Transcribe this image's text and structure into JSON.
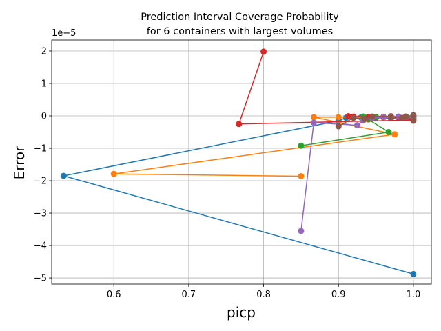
{
  "chart_data": {
    "type": "line",
    "title_line1": "Prediction Interval Coverage Probability",
    "title_line2": "for 6 containers with largest volumes",
    "xlabel": "picp",
    "ylabel": "Error",
    "y_offset_text": "1e−5",
    "xlim": [
      0.517,
      1.024
    ],
    "ylim": [
      -5.19,
      2.34
    ],
    "xticks": [
      0.6,
      0.7,
      0.8,
      0.9,
      1.0
    ],
    "xtick_labels": [
      "0.6",
      "0.7",
      "0.8",
      "0.9",
      "1.0"
    ],
    "yticks": [
      -5,
      -4,
      -3,
      -2,
      -1,
      0,
      1,
      2
    ],
    "ytick_labels": [
      "−5",
      "−4",
      "−3",
      "−2",
      "−1",
      "0",
      "1",
      "2"
    ],
    "grid": true,
    "markers": true,
    "series": [
      {
        "color": "#1f77b4",
        "points": [
          [
            1.0,
            -4.88
          ],
          [
            0.533,
            -1.85
          ],
          [
            0.9,
            -0.15
          ],
          [
            0.91,
            -0.06
          ],
          [
            0.93,
            -0.05
          ],
          [
            0.95,
            -0.06
          ],
          [
            0.97,
            -0.08
          ],
          [
            1.0,
            -0.07
          ]
        ]
      },
      {
        "color": "#ff7f0e",
        "points": [
          [
            0.85,
            -1.86
          ],
          [
            0.6,
            -1.79
          ],
          [
            0.975,
            -0.57
          ],
          [
            0.867,
            -0.04
          ],
          [
            0.9,
            -0.04
          ],
          [
            0.92,
            -0.04
          ],
          [
            0.94,
            -0.05
          ],
          [
            0.96,
            -0.05
          ],
          [
            0.98,
            -0.03
          ],
          [
            1.0,
            -0.04
          ]
        ]
      },
      {
        "color": "#2ca02c",
        "points": [
          [
            0.85,
            -0.92
          ],
          [
            0.967,
            -0.5
          ],
          [
            0.94,
            -0.11
          ],
          [
            0.933,
            -0.02
          ],
          [
            0.95,
            -0.03
          ],
          [
            0.97,
            -0.02
          ],
          [
            0.99,
            -0.03
          ],
          [
            1.0,
            -0.03
          ]
        ]
      },
      {
        "color": "#d62728",
        "points": [
          [
            0.8,
            1.98
          ],
          [
            0.767,
            -0.25
          ],
          [
            1.0,
            -0.13
          ],
          [
            0.98,
            -0.05
          ],
          [
            0.96,
            -0.03
          ],
          [
            0.94,
            -0.03
          ],
          [
            0.92,
            -0.02
          ],
          [
            0.913,
            -0.01
          ]
        ]
      },
      {
        "color": "#9467bd",
        "points": [
          [
            0.85,
            -3.55
          ],
          [
            0.867,
            -0.21
          ],
          [
            0.925,
            -0.29
          ],
          [
            0.933,
            -0.14
          ],
          [
            0.945,
            -0.06
          ],
          [
            0.96,
            -0.04
          ],
          [
            0.98,
            -0.02
          ],
          [
            1.0,
            -0.01
          ]
        ]
      },
      {
        "color": "#8c564b",
        "points": [
          [
            0.9,
            -0.32
          ],
          [
            0.92,
            -0.06
          ],
          [
            0.935,
            -0.1
          ],
          [
            0.945,
            -0.02
          ],
          [
            0.97,
            -0.01
          ],
          [
            0.985,
            -0.06
          ],
          [
            0.99,
            -0.02
          ],
          [
            1.0,
            0.02
          ],
          [
            1.0,
            -0.15
          ]
        ]
      }
    ]
  }
}
